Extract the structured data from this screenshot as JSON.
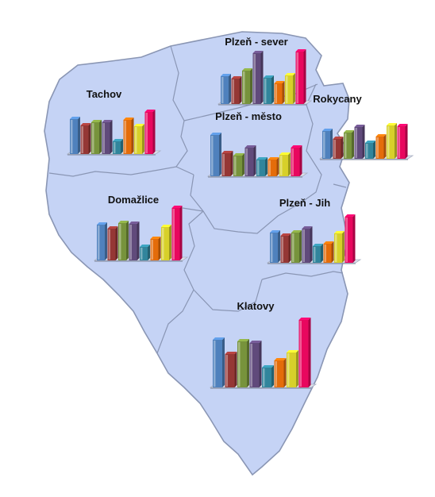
{
  "map": {
    "fill_color": "#c5d3f5",
    "border_color": "#8a96b4",
    "bar_colors": [
      "#4f81bd",
      "#953735",
      "#77933c",
      "#604a7b",
      "#31859c",
      "#e46c0a",
      "#d7d02a",
      "#e8075e"
    ]
  },
  "regions": [
    {
      "id": "plzen-sever",
      "label": "Plzeň - sever",
      "values": [
        35,
        32,
        42,
        64,
        33,
        26,
        36,
        66
      ]
    },
    {
      "id": "tachov",
      "label": "Tachov",
      "values": [
        44,
        36,
        40,
        40,
        16,
        43,
        35,
        53
      ]
    },
    {
      "id": "rokycany",
      "label": "Rokycany",
      "values": [
        35,
        25,
        33,
        40,
        20,
        28,
        42,
        41
      ]
    },
    {
      "id": "plzen-mesto",
      "label": "Plzeň - město",
      "values": [
        52,
        29,
        26,
        36,
        21,
        21,
        27,
        36
      ]
    },
    {
      "id": "domazlice",
      "label": "Domažlice",
      "values": [
        45,
        40,
        47,
        46,
        17,
        27,
        42,
        66
      ]
    },
    {
      "id": "plzen-jih",
      "label": "Plzeň - Jih",
      "values": [
        38,
        34,
        38,
        43,
        21,
        24,
        37,
        58
      ]
    },
    {
      "id": "klatovy",
      "label": "Klatovy",
      "values": [
        60,
        42,
        58,
        56,
        25,
        34,
        44,
        85
      ]
    }
  ]
}
